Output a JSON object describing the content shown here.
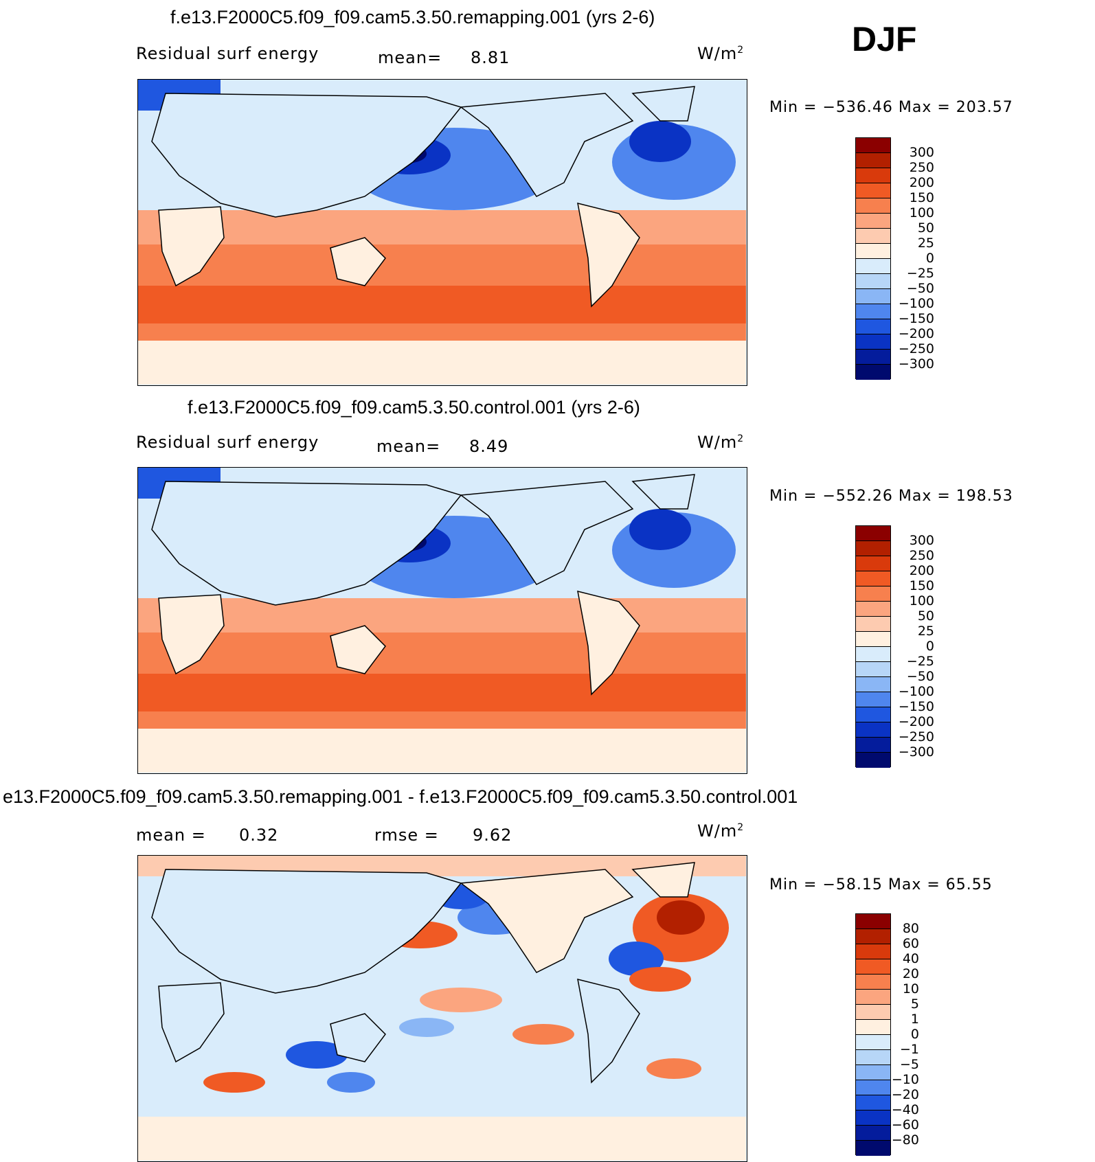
{
  "season": "DJF",
  "units": "W/m",
  "units_sup": "2",
  "panels": [
    {
      "title": "f.e13.F2000C5.f09_f09.cam5.3.50.remapping.001 (yrs 2-6)",
      "left_label": "Residual surf energy",
      "stat1_label": "mean=",
      "stat1_value": "8.81",
      "stat2_label": "",
      "stat2_value": "",
      "min_max": "Min = −536.46 Max = 203.57"
    },
    {
      "title": "f.e13.F2000C5.f09_f09.cam5.3.50.control.001 (yrs 2-6)",
      "left_label": "Residual surf energy",
      "stat1_label": "mean=",
      "stat1_value": "8.49",
      "stat2_label": "",
      "stat2_value": "",
      "min_max": "Min = −552.26 Max = 198.53"
    },
    {
      "title": "e13.F2000C5.f09_f09.cam5.3.50.remapping.001 - f.e13.F2000C5.f09_f09.cam5.3.50.control.001",
      "left_label": "",
      "stat1_label": "mean =",
      "stat1_value": "0.32",
      "stat2_label": "rmse =",
      "stat2_value": "9.62",
      "min_max": "Min = −58.15 Max =   65.55"
    }
  ],
  "chart_data": [
    {
      "type": "heatmap",
      "title": "f.e13.F2000C5.f09_f09.cam5.3.50.remapping.001 (yrs 2-6)",
      "variable": "Residual surf energy",
      "units": "W/m2",
      "mean": 8.81,
      "min": -536.46,
      "max": 203.57,
      "colorbar_levels": [
        "300",
        "250",
        "200",
        "150",
        "100",
        "50",
        "25",
        "0",
        "−25",
        "−50",
        "−100",
        "−150",
        "−200",
        "−250",
        "−300"
      ],
      "colorbar_colors": [
        "#8b0000",
        "#b22000",
        "#d93a0c",
        "#f05a24",
        "#f7804e",
        "#fba57f",
        "#fdcbb0",
        "#fff0e0",
        "#d9ecfb",
        "#b7d6f7",
        "#8ab6f5",
        "#4f86ee",
        "#1f57e0",
        "#0a33c4",
        "#041c9c",
        "#000a6e"
      ]
    },
    {
      "type": "heatmap",
      "title": "f.e13.F2000C5.f09_f09.cam5.3.50.control.001 (yrs 2-6)",
      "variable": "Residual surf energy",
      "units": "W/m2",
      "mean": 8.49,
      "min": -552.26,
      "max": 198.53,
      "colorbar_levels": [
        "300",
        "250",
        "200",
        "150",
        "100",
        "50",
        "25",
        "0",
        "−25",
        "−50",
        "−100",
        "−150",
        "−200",
        "−250",
        "−300"
      ],
      "colorbar_colors": [
        "#8b0000",
        "#b22000",
        "#d93a0c",
        "#f05a24",
        "#f7804e",
        "#fba57f",
        "#fdcbb0",
        "#fff0e0",
        "#d9ecfb",
        "#b7d6f7",
        "#8ab6f5",
        "#4f86ee",
        "#1f57e0",
        "#0a33c4",
        "#041c9c",
        "#000a6e"
      ]
    },
    {
      "type": "heatmap",
      "title": "e13.F2000C5.f09_f09.cam5.3.50.remapping.001 - f.e13.F2000C5.f09_f09.cam5.3.50.control.001",
      "units": "W/m2",
      "mean": 0.32,
      "rmse": 9.62,
      "min": -58.15,
      "max": 65.55,
      "colorbar_levels": [
        "80",
        "60",
        "40",
        "20",
        "10",
        "5",
        "1",
        "0",
        "−1",
        "−5",
        "−10",
        "−20",
        "−40",
        "−60",
        "−80"
      ],
      "colorbar_colors": [
        "#8b0000",
        "#b22000",
        "#d93a0c",
        "#f05a24",
        "#f7804e",
        "#fba57f",
        "#fdcbb0",
        "#fff0e0",
        "#d9ecfb",
        "#b7d6f7",
        "#8ab6f5",
        "#4f86ee",
        "#1f57e0",
        "#0a33c4",
        "#041c9c",
        "#000a6e"
      ]
    }
  ]
}
